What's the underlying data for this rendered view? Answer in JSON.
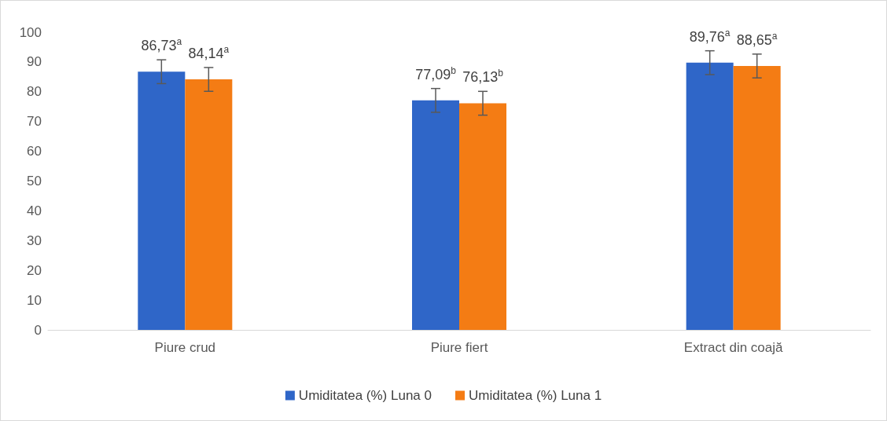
{
  "chart_data": {
    "type": "bar",
    "categories": [
      "Piure crud",
      "Piure fiert",
      "Extract din coajă"
    ],
    "series": [
      {
        "name": "Umiditatea (%) Luna 0",
        "color": "#2f66c8",
        "values": [
          86.73,
          77.09,
          89.76
        ],
        "errors": [
          4,
          4,
          4
        ],
        "value_labels": [
          "86,73$^{a}$",
          "77,09$^{b}$",
          "89,76$^{a}$"
        ]
      },
      {
        "name": "Umiditatea (%) Luna 1",
        "color": "#f47c14",
        "values": [
          84.14,
          76.13,
          88.65
        ],
        "errors": [
          4,
          4,
          4
        ],
        "value_labels": [
          "84,14$^{a}$",
          "76,13$^{b}$",
          "88,65$^{a}$"
        ]
      }
    ],
    "ylim": [
      0,
      100
    ],
    "yticks": [
      0,
      10,
      20,
      30,
      40,
      50,
      60,
      70,
      80,
      90,
      100
    ],
    "grid": false,
    "legend": "bottom"
  }
}
